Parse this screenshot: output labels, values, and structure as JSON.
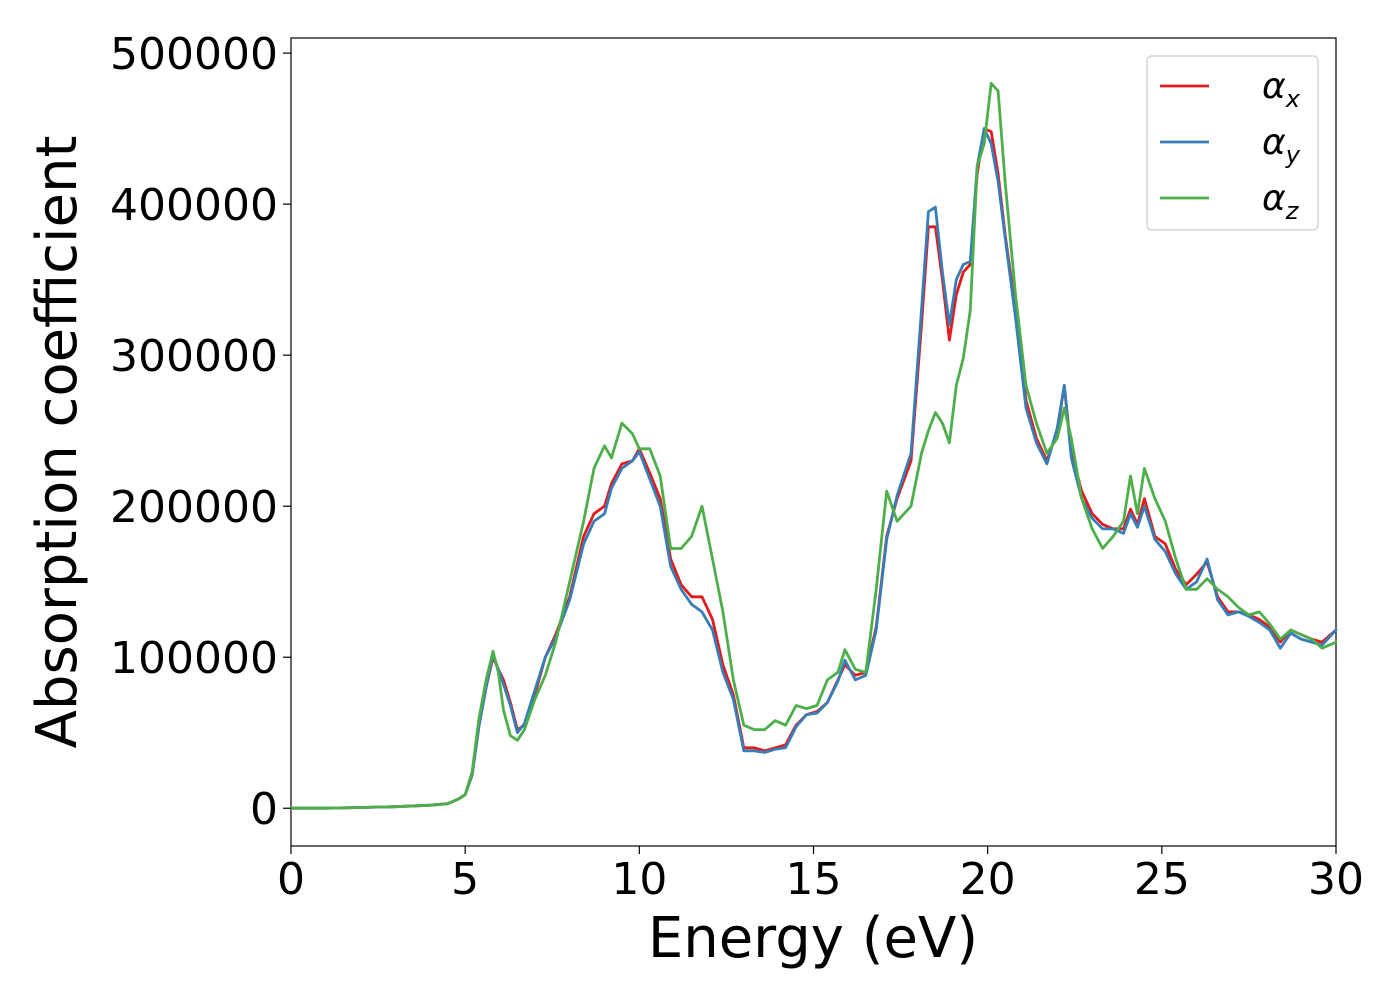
{
  "chart_data": {
    "type": "line",
    "xlabel": "Energy (eV)",
    "ylabel": "Absorption coefficient",
    "xlim": [
      0,
      30
    ],
    "ylim": [
      -25000,
      510000
    ],
    "xticks": [
      0,
      5,
      10,
      15,
      20,
      25,
      30
    ],
    "yticks": [
      0,
      100000,
      200000,
      300000,
      400000,
      500000
    ],
    "xtick_labels": [
      "0",
      "5",
      "10",
      "15",
      "20",
      "25",
      "30"
    ],
    "ytick_labels": [
      "0",
      "100000",
      "200000",
      "300000",
      "400000",
      "500000"
    ],
    "grid": false,
    "legend": {
      "position": "top-right",
      "entries": [
        {
          "symbol": "α",
          "sub": "x"
        },
        {
          "symbol": "α",
          "sub": "y"
        },
        {
          "symbol": "α",
          "sub": "z"
        }
      ]
    },
    "series": [
      {
        "name": "αx",
        "color": "#e41a1c",
        "x": [
          0,
          1,
          2,
          3,
          4,
          4.5,
          4.8,
          5,
          5.2,
          5.4,
          5.6,
          5.8,
          5.95,
          6.1,
          6.3,
          6.5,
          6.7,
          7,
          7.3,
          7.6,
          8,
          8.4,
          8.7,
          9,
          9.2,
          9.5,
          9.8,
          10,
          10.3,
          10.6,
          10.9,
          11.2,
          11.5,
          11.8,
          12.1,
          12.4,
          12.7,
          13,
          13.3,
          13.6,
          13.9,
          14.2,
          14.5,
          14.8,
          15.1,
          15.4,
          15.7,
          15.9,
          16.2,
          16.5,
          16.8,
          17.1,
          17.4,
          17.8,
          18.1,
          18.3,
          18.5,
          18.7,
          18.9,
          19.1,
          19.3,
          19.5,
          19.7,
          19.9,
          20.1,
          20.3,
          20.5,
          20.8,
          21.1,
          21.4,
          21.7,
          22,
          22.2,
          22.4,
          22.7,
          23,
          23.3,
          23.6,
          23.9,
          24.1,
          24.3,
          24.5,
          24.8,
          25.1,
          25.4,
          25.7,
          26,
          26.3,
          26.6,
          26.9,
          27.2,
          27.5,
          27.8,
          28.1,
          28.4,
          28.7,
          29,
          29.3,
          29.6,
          30
        ],
        "y": [
          0,
          0,
          500,
          1000,
          2000,
          3000,
          6000,
          9000,
          22000,
          55000,
          80000,
          100000,
          92000,
          85000,
          70000,
          52000,
          55000,
          75000,
          100000,
          115000,
          140000,
          180000,
          195000,
          200000,
          215000,
          228000,
          230000,
          238000,
          222000,
          205000,
          165000,
          148000,
          140000,
          140000,
          125000,
          95000,
          75000,
          40000,
          40000,
          38000,
          40000,
          42000,
          55000,
          62000,
          64000,
          70000,
          85000,
          95000,
          88000,
          90000,
          120000,
          180000,
          205000,
          230000,
          320000,
          385000,
          385000,
          350000,
          310000,
          340000,
          355000,
          360000,
          420000,
          450000,
          448000,
          420000,
          380000,
          330000,
          270000,
          245000,
          230000,
          250000,
          280000,
          235000,
          210000,
          195000,
          188000,
          185000,
          185000,
          198000,
          188000,
          205000,
          180000,
          175000,
          158000,
          148000,
          155000,
          163000,
          140000,
          130000,
          130000,
          128000,
          125000,
          120000,
          110000,
          118000,
          115000,
          112000,
          110000,
          118000
        ]
      },
      {
        "name": "αy",
        "color": "#377eb8",
        "x": [
          0,
          1,
          2,
          3,
          4,
          4.5,
          4.8,
          5,
          5.2,
          5.4,
          5.6,
          5.8,
          5.95,
          6.1,
          6.3,
          6.5,
          6.7,
          7,
          7.3,
          7.6,
          8,
          8.4,
          8.7,
          9,
          9.2,
          9.5,
          9.8,
          10,
          10.3,
          10.6,
          10.9,
          11.2,
          11.5,
          11.8,
          12.1,
          12.4,
          12.7,
          13,
          13.3,
          13.6,
          13.9,
          14.2,
          14.5,
          14.8,
          15.1,
          15.4,
          15.7,
          15.9,
          16.2,
          16.5,
          16.8,
          17.1,
          17.4,
          17.8,
          18.1,
          18.3,
          18.5,
          18.7,
          18.9,
          19.1,
          19.3,
          19.5,
          19.7,
          19.9,
          20.1,
          20.3,
          20.5,
          20.8,
          21.1,
          21.4,
          21.7,
          22,
          22.2,
          22.4,
          22.7,
          23,
          23.3,
          23.6,
          23.9,
          24.1,
          24.3,
          24.5,
          24.8,
          25.1,
          25.4,
          25.7,
          26,
          26.3,
          26.6,
          26.9,
          27.2,
          27.5,
          27.8,
          28.1,
          28.4,
          28.7,
          29,
          29.3,
          29.6,
          30
        ],
        "y": [
          0,
          0,
          500,
          1000,
          2000,
          3000,
          6000,
          9000,
          22000,
          55000,
          80000,
          102000,
          92000,
          82000,
          68000,
          50000,
          56000,
          78000,
          100000,
          113000,
          138000,
          175000,
          190000,
          195000,
          212000,
          225000,
          230000,
          236000,
          218000,
          200000,
          160000,
          145000,
          135000,
          130000,
          118000,
          90000,
          72000,
          38000,
          38000,
          37000,
          39000,
          40000,
          54000,
          62000,
          63000,
          70000,
          84000,
          98000,
          85000,
          88000,
          118000,
          178000,
          207000,
          235000,
          330000,
          395000,
          398000,
          355000,
          320000,
          350000,
          360000,
          362000,
          425000,
          450000,
          440000,
          415000,
          378000,
          325000,
          265000,
          242000,
          228000,
          252000,
          280000,
          232000,
          205000,
          192000,
          185000,
          185000,
          182000,
          195000,
          186000,
          200000,
          178000,
          170000,
          155000,
          145000,
          150000,
          165000,
          138000,
          128000,
          130000,
          127000,
          123000,
          118000,
          106000,
          116000,
          112000,
          110000,
          108000,
          118000
        ]
      },
      {
        "name": "αz",
        "color": "#4daf4a",
        "x": [
          0,
          1,
          2,
          3,
          4,
          4.5,
          4.8,
          5,
          5.2,
          5.4,
          5.6,
          5.8,
          5.95,
          6.1,
          6.3,
          6.5,
          6.7,
          7,
          7.3,
          7.6,
          8,
          8.4,
          8.7,
          9,
          9.2,
          9.5,
          9.8,
          10,
          10.3,
          10.6,
          10.9,
          11.2,
          11.5,
          11.8,
          12.1,
          12.4,
          12.7,
          13,
          13.3,
          13.6,
          13.9,
          14.2,
          14.5,
          14.8,
          15.1,
          15.4,
          15.7,
          15.9,
          16.2,
          16.5,
          16.8,
          17.1,
          17.4,
          17.8,
          18.1,
          18.3,
          18.5,
          18.7,
          18.9,
          19.1,
          19.3,
          19.5,
          19.7,
          19.9,
          20.1,
          20.3,
          20.5,
          20.8,
          21.1,
          21.4,
          21.7,
          22,
          22.2,
          22.4,
          22.7,
          23,
          23.3,
          23.6,
          23.9,
          24.1,
          24.3,
          24.5,
          24.8,
          25.1,
          25.4,
          25.7,
          26,
          26.3,
          26.6,
          26.9,
          27.2,
          27.5,
          27.8,
          28.1,
          28.4,
          28.7,
          29,
          29.3,
          29.6,
          30
        ],
        "y": [
          0,
          0,
          500,
          1000,
          2000,
          3000,
          6000,
          9000,
          24000,
          60000,
          85000,
          104000,
          90000,
          65000,
          48000,
          45000,
          52000,
          72000,
          88000,
          110000,
          150000,
          190000,
          225000,
          240000,
          232000,
          255000,
          248000,
          238000,
          238000,
          220000,
          172000,
          172000,
          180000,
          200000,
          165000,
          130000,
          85000,
          55000,
          52000,
          52000,
          58000,
          55000,
          68000,
          66000,
          68000,
          85000,
          90000,
          105000,
          92000,
          90000,
          145000,
          210000,
          190000,
          200000,
          235000,
          250000,
          262000,
          255000,
          242000,
          280000,
          298000,
          330000,
          425000,
          440000,
          480000,
          475000,
          415000,
          340000,
          280000,
          255000,
          235000,
          245000,
          265000,
          245000,
          205000,
          185000,
          172000,
          180000,
          190000,
          220000,
          195000,
          225000,
          205000,
          190000,
          165000,
          145000,
          145000,
          152000,
          145000,
          140000,
          133000,
          128000,
          130000,
          122000,
          112000,
          118000,
          115000,
          112000,
          106000,
          110000
        ]
      }
    ]
  }
}
